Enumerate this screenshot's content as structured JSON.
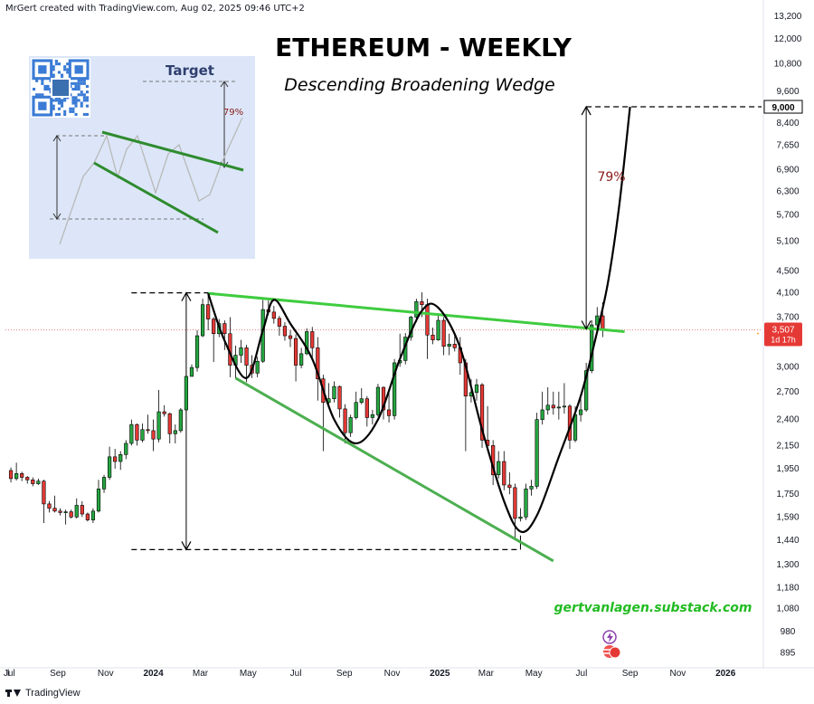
{
  "header": {
    "credit": "MrGert created with TradingView.com, Aug 02, 2025 09:46 UTC+2"
  },
  "footer": {
    "brand": "TradingView"
  },
  "colors": {
    "up": "#26a641",
    "down": "#e53935",
    "trendline_upper": "#3fcc3f",
    "trendline_lower": "#4caf50",
    "curve": "#000000",
    "projection_label": "#8b1a1a",
    "watermark": "#22bb22",
    "price_badge": "#e53935"
  },
  "chart_data": {
    "type": "candlestick",
    "title": "ETHEREUM - WEEKLY",
    "subtitle": "Descending Broadening Wedge",
    "y_scale": "log",
    "ylim": [
      860,
      13500
    ],
    "y_ticks": [
      13200,
      12000,
      10800,
      9600,
      8400,
      7650,
      6900,
      6300,
      5700,
      5100,
      4500,
      4100,
      3700,
      3000,
      2700,
      2400,
      2150,
      1950,
      1750,
      1590,
      1440,
      1300,
      1180,
      1080,
      980,
      895
    ],
    "y_tick_labels": [
      "13,200",
      "12,000",
      "10,800",
      "9,600",
      "8,400",
      "7,650",
      "6,900",
      "6,300",
      "5,700",
      "5,100",
      "4,500",
      "4,100",
      "3,700",
      "3,000",
      "2,700",
      "2,400",
      "2,150",
      "1,950",
      "1,750",
      "1,590",
      "1,440",
      "1,300",
      "1,180",
      "1,080",
      "980",
      "895"
    ],
    "xlim": [
      "2023-06-26",
      "2026-02-16"
    ],
    "x_ticks": [
      {
        "date": "2023-07-01",
        "label": "Jul"
      },
      {
        "date": "2023-09-01",
        "label": "Sep"
      },
      {
        "date": "2023-11-01",
        "label": "Nov"
      },
      {
        "date": "2024-01-01",
        "label": "2024"
      },
      {
        "date": "2024-03-01",
        "label": "Mar"
      },
      {
        "date": "2024-05-01",
        "label": "May"
      },
      {
        "date": "2024-07-01",
        "label": "Jul"
      },
      {
        "date": "2024-09-01",
        "label": "Sep"
      },
      {
        "date": "2024-11-01",
        "label": "Nov"
      },
      {
        "date": "2025-01-01",
        "label": "2025"
      },
      {
        "date": "2025-03-01",
        "label": "Mar"
      },
      {
        "date": "2025-05-01",
        "label": "May"
      },
      {
        "date": "2025-07-01",
        "label": "Jul"
      },
      {
        "date": "2025-09-01",
        "label": "Sep"
      },
      {
        "date": "2025-11-01",
        "label": "Nov"
      },
      {
        "date": "2026-01-01",
        "label": "2026"
      }
    ],
    "candles": [
      {
        "d": "2023-07-03",
        "o": 1935,
        "h": 1960,
        "l": 1840,
        "c": 1870
      },
      {
        "d": "2023-07-10",
        "o": 1870,
        "h": 2000,
        "l": 1855,
        "c": 1910
      },
      {
        "d": "2023-07-17",
        "o": 1910,
        "h": 1925,
        "l": 1850,
        "c": 1880
      },
      {
        "d": "2023-07-24",
        "o": 1880,
        "h": 1890,
        "l": 1830,
        "c": 1860
      },
      {
        "d": "2023-07-31",
        "o": 1860,
        "h": 1880,
        "l": 1810,
        "c": 1830
      },
      {
        "d": "2023-08-07",
        "o": 1830,
        "h": 1870,
        "l": 1820,
        "c": 1850
      },
      {
        "d": "2023-08-14",
        "o": 1850,
        "h": 1860,
        "l": 1550,
        "c": 1680
      },
      {
        "d": "2023-08-21",
        "o": 1680,
        "h": 1700,
        "l": 1620,
        "c": 1650
      },
      {
        "d": "2023-08-28",
        "o": 1650,
        "h": 1740,
        "l": 1620,
        "c": 1630
      },
      {
        "d": "2023-09-04",
        "o": 1630,
        "h": 1650,
        "l": 1600,
        "c": 1620
      },
      {
        "d": "2023-09-11",
        "o": 1620,
        "h": 1640,
        "l": 1540,
        "c": 1625
      },
      {
        "d": "2023-09-18",
        "o": 1625,
        "h": 1640,
        "l": 1580,
        "c": 1590
      },
      {
        "d": "2023-09-25",
        "o": 1590,
        "h": 1720,
        "l": 1580,
        "c": 1670
      },
      {
        "d": "2023-10-02",
        "o": 1670,
        "h": 1700,
        "l": 1590,
        "c": 1610
      },
      {
        "d": "2023-10-09",
        "o": 1610,
        "h": 1620,
        "l": 1560,
        "c": 1570
      },
      {
        "d": "2023-10-16",
        "o": 1570,
        "h": 1650,
        "l": 1550,
        "c": 1630
      },
      {
        "d": "2023-10-23",
        "o": 1630,
        "h": 1860,
        "l": 1620,
        "c": 1790
      },
      {
        "d": "2023-10-30",
        "o": 1790,
        "h": 1900,
        "l": 1760,
        "c": 1880
      },
      {
        "d": "2023-11-06",
        "o": 1880,
        "h": 2140,
        "l": 1860,
        "c": 2050
      },
      {
        "d": "2023-11-13",
        "o": 2050,
        "h": 2120,
        "l": 1950,
        "c": 2010
      },
      {
        "d": "2023-11-20",
        "o": 2010,
        "h": 2100,
        "l": 1940,
        "c": 2070
      },
      {
        "d": "2023-11-27",
        "o": 2070,
        "h": 2200,
        "l": 2030,
        "c": 2170
      },
      {
        "d": "2023-12-04",
        "o": 2170,
        "h": 2400,
        "l": 2150,
        "c": 2350
      },
      {
        "d": "2023-12-11",
        "o": 2350,
        "h": 2360,
        "l": 2150,
        "c": 2200
      },
      {
        "d": "2023-12-18",
        "o": 2200,
        "h": 2360,
        "l": 2180,
        "c": 2300
      },
      {
        "d": "2023-12-25",
        "o": 2300,
        "h": 2450,
        "l": 2260,
        "c": 2290
      },
      {
        "d": "2024-01-01",
        "o": 2290,
        "h": 2400,
        "l": 2100,
        "c": 2210
      },
      {
        "d": "2024-01-08",
        "o": 2210,
        "h": 2720,
        "l": 2180,
        "c": 2480
      },
      {
        "d": "2024-01-15",
        "o": 2480,
        "h": 2550,
        "l": 2430,
        "c": 2460
      },
      {
        "d": "2024-01-22",
        "o": 2460,
        "h": 2470,
        "l": 2170,
        "c": 2260
      },
      {
        "d": "2024-01-29",
        "o": 2260,
        "h": 2350,
        "l": 2170,
        "c": 2290
      },
      {
        "d": "2024-02-05",
        "o": 2290,
        "h": 2520,
        "l": 2270,
        "c": 2500
      },
      {
        "d": "2024-02-12",
        "o": 2500,
        "h": 2950,
        "l": 2480,
        "c": 2880
      },
      {
        "d": "2024-02-19",
        "o": 2880,
        "h": 3030,
        "l": 2890,
        "c": 2990
      },
      {
        "d": "2024-02-26",
        "o": 2990,
        "h": 3500,
        "l": 2940,
        "c": 3420
      },
      {
        "d": "2024-03-04",
        "o": 3420,
        "h": 4000,
        "l": 3400,
        "c": 3900
      },
      {
        "d": "2024-03-11",
        "o": 3900,
        "h": 4090,
        "l": 3500,
        "c": 3670
      },
      {
        "d": "2024-03-18",
        "o": 3670,
        "h": 3700,
        "l": 3060,
        "c": 3450
      },
      {
        "d": "2024-03-25",
        "o": 3450,
        "h": 3670,
        "l": 3400,
        "c": 3600
      },
      {
        "d": "2024-04-01",
        "o": 3600,
        "h": 3650,
        "l": 3220,
        "c": 3450
      },
      {
        "d": "2024-04-08",
        "o": 3450,
        "h": 3700,
        "l": 2870,
        "c": 3020
      },
      {
        "d": "2024-04-15",
        "o": 3020,
        "h": 3280,
        "l": 2860,
        "c": 3150
      },
      {
        "d": "2024-04-22",
        "o": 3150,
        "h": 3360,
        "l": 3050,
        "c": 3250
      },
      {
        "d": "2024-04-29",
        "o": 3250,
        "h": 3290,
        "l": 2810,
        "c": 3020
      },
      {
        "d": "2024-05-06",
        "o": 3020,
        "h": 3150,
        "l": 2860,
        "c": 2920
      },
      {
        "d": "2024-05-13",
        "o": 2920,
        "h": 3130,
        "l": 2870,
        "c": 3070
      },
      {
        "d": "2024-05-20",
        "o": 3070,
        "h": 3980,
        "l": 3050,
        "c": 3820
      },
      {
        "d": "2024-05-27",
        "o": 3820,
        "h": 3970,
        "l": 3730,
        "c": 3780
      },
      {
        "d": "2024-06-03",
        "o": 3780,
        "h": 3880,
        "l": 3600,
        "c": 3680
      },
      {
        "d": "2024-06-10",
        "o": 3680,
        "h": 3720,
        "l": 3420,
        "c": 3560
      },
      {
        "d": "2024-06-17",
        "o": 3560,
        "h": 3620,
        "l": 3350,
        "c": 3420
      },
      {
        "d": "2024-06-24",
        "o": 3420,
        "h": 3500,
        "l": 3260,
        "c": 3380
      },
      {
        "d": "2024-07-01",
        "o": 3380,
        "h": 3440,
        "l": 2820,
        "c": 3020
      },
      {
        "d": "2024-07-08",
        "o": 3020,
        "h": 3250,
        "l": 2980,
        "c": 3170
      },
      {
        "d": "2024-07-15",
        "o": 3170,
        "h": 3530,
        "l": 3150,
        "c": 3480
      },
      {
        "d": "2024-07-22",
        "o": 3480,
        "h": 3550,
        "l": 3100,
        "c": 3250
      },
      {
        "d": "2024-07-29",
        "o": 3250,
        "h": 3400,
        "l": 2600,
        "c": 2850
      },
      {
        "d": "2024-08-05",
        "o": 2850,
        "h": 2900,
        "l": 2100,
        "c": 2580
      },
      {
        "d": "2024-08-12",
        "o": 2580,
        "h": 2800,
        "l": 2550,
        "c": 2620
      },
      {
        "d": "2024-08-19",
        "o": 2620,
        "h": 2820,
        "l": 2580,
        "c": 2760
      },
      {
        "d": "2024-08-26",
        "o": 2760,
        "h": 2770,
        "l": 2420,
        "c": 2510
      },
      {
        "d": "2024-09-02",
        "o": 2510,
        "h": 2560,
        "l": 2170,
        "c": 2270
      },
      {
        "d": "2024-09-09",
        "o": 2270,
        "h": 2450,
        "l": 2230,
        "c": 2420
      },
      {
        "d": "2024-09-16",
        "o": 2420,
        "h": 2700,
        "l": 2400,
        "c": 2580
      },
      {
        "d": "2024-09-23",
        "o": 2580,
        "h": 2740,
        "l": 2560,
        "c": 2620
      },
      {
        "d": "2024-09-30",
        "o": 2620,
        "h": 2650,
        "l": 2330,
        "c": 2420
      },
      {
        "d": "2024-10-07",
        "o": 2420,
        "h": 2500,
        "l": 2350,
        "c": 2450
      },
      {
        "d": "2024-10-14",
        "o": 2450,
        "h": 2790,
        "l": 2430,
        "c": 2750
      },
      {
        "d": "2024-10-21",
        "o": 2750,
        "h": 2760,
        "l": 2400,
        "c": 2500
      },
      {
        "d": "2024-10-28",
        "o": 2500,
        "h": 2700,
        "l": 2370,
        "c": 2440
      },
      {
        "d": "2024-11-04",
        "o": 2440,
        "h": 3100,
        "l": 2400,
        "c": 3050
      },
      {
        "d": "2024-11-11",
        "o": 3050,
        "h": 3450,
        "l": 3000,
        "c": 3080
      },
      {
        "d": "2024-11-18",
        "o": 3080,
        "h": 3460,
        "l": 3030,
        "c": 3400
      },
      {
        "d": "2024-11-25",
        "o": 3400,
        "h": 3720,
        "l": 3350,
        "c": 3700
      },
      {
        "d": "2024-12-02",
        "o": 3700,
        "h": 4000,
        "l": 3620,
        "c": 3950
      },
      {
        "d": "2024-12-09",
        "o": 3950,
        "h": 4110,
        "l": 3700,
        "c": 3900
      },
      {
        "d": "2024-12-16",
        "o": 3900,
        "h": 4000,
        "l": 3100,
        "c": 3430
      },
      {
        "d": "2024-12-23",
        "o": 3430,
        "h": 3540,
        "l": 3300,
        "c": 3360
      },
      {
        "d": "2024-12-30",
        "o": 3360,
        "h": 3740,
        "l": 3350,
        "c": 3650
      },
      {
        "d": "2025-01-06",
        "o": 3650,
        "h": 3700,
        "l": 3150,
        "c": 3270
      },
      {
        "d": "2025-01-13",
        "o": 3270,
        "h": 3450,
        "l": 3150,
        "c": 3300
      },
      {
        "d": "2025-01-20",
        "o": 3300,
        "h": 3450,
        "l": 3200,
        "c": 3250
      },
      {
        "d": "2025-01-27",
        "o": 3250,
        "h": 3400,
        "l": 2900,
        "c": 3050
      },
      {
        "d": "2025-02-03",
        "o": 3050,
        "h": 3100,
        "l": 2100,
        "c": 2650
      },
      {
        "d": "2025-02-10",
        "o": 2650,
        "h": 2850,
        "l": 2580,
        "c": 2690
      },
      {
        "d": "2025-02-17",
        "o": 2690,
        "h": 2850,
        "l": 2600,
        "c": 2780
      },
      {
        "d": "2025-02-24",
        "o": 2780,
        "h": 2800,
        "l": 2130,
        "c": 2200
      },
      {
        "d": "2025-03-03",
        "o": 2200,
        "h": 2540,
        "l": 2100,
        "c": 2150
      },
      {
        "d": "2025-03-10",
        "o": 2150,
        "h": 2200,
        "l": 1820,
        "c": 1900
      },
      {
        "d": "2025-03-17",
        "o": 1900,
        "h": 2100,
        "l": 1870,
        "c": 2010
      },
      {
        "d": "2025-03-24",
        "o": 2010,
        "h": 2100,
        "l": 1780,
        "c": 1820
      },
      {
        "d": "2025-03-31",
        "o": 1820,
        "h": 1920,
        "l": 1750,
        "c": 1800
      },
      {
        "d": "2025-04-07",
        "o": 1800,
        "h": 1830,
        "l": 1450,
        "c": 1580
      },
      {
        "d": "2025-04-14",
        "o": 1580,
        "h": 1650,
        "l": 1560,
        "c": 1590
      },
      {
        "d": "2025-04-21",
        "o": 1590,
        "h": 1830,
        "l": 1570,
        "c": 1790
      },
      {
        "d": "2025-04-28",
        "o": 1790,
        "h": 1860,
        "l": 1740,
        "c": 1810
      },
      {
        "d": "2025-05-05",
        "o": 1810,
        "h": 2470,
        "l": 1790,
        "c": 2400
      },
      {
        "d": "2025-05-12",
        "o": 2400,
        "h": 2700,
        "l": 2350,
        "c": 2500
      },
      {
        "d": "2025-05-19",
        "o": 2500,
        "h": 2750,
        "l": 2450,
        "c": 2550
      },
      {
        "d": "2025-05-26",
        "o": 2550,
        "h": 2700,
        "l": 2450,
        "c": 2520
      },
      {
        "d": "2025-06-02",
        "o": 2520,
        "h": 2700,
        "l": 2400,
        "c": 2530
      },
      {
        "d": "2025-06-09",
        "o": 2530,
        "h": 2800,
        "l": 2460,
        "c": 2540
      },
      {
        "d": "2025-06-16",
        "o": 2540,
        "h": 2560,
        "l": 2120,
        "c": 2200
      },
      {
        "d": "2025-06-23",
        "o": 2200,
        "h": 2540,
        "l": 2180,
        "c": 2450
      },
      {
        "d": "2025-06-30",
        "o": 2450,
        "h": 2620,
        "l": 2380,
        "c": 2500
      },
      {
        "d": "2025-07-07",
        "o": 2500,
        "h": 3050,
        "l": 2480,
        "c": 2950
      },
      {
        "d": "2025-07-14",
        "o": 2950,
        "h": 3650,
        "l": 2920,
        "c": 3580
      },
      {
        "d": "2025-07-21",
        "o": 3580,
        "h": 3860,
        "l": 3520,
        "c": 3720
      },
      {
        "d": "2025-07-28",
        "o": 3720,
        "h": 3940,
        "l": 3400,
        "c": 3507
      }
    ],
    "upper_trendline": [
      {
        "d": "2024-03-11",
        "p": 4090
      },
      {
        "d": "2025-08-25",
        "p": 3480
      }
    ],
    "lower_trendline": [
      {
        "d": "2024-04-15",
        "p": 2860
      },
      {
        "d": "2025-05-26",
        "p": 1320
      }
    ],
    "wave_curve": [
      {
        "d": "2024-03-11",
        "p": 4090
      },
      {
        "d": "2024-04-01",
        "p": 3350
      },
      {
        "d": "2024-04-29",
        "p": 2860
      },
      {
        "d": "2024-05-20",
        "p": 3500
      },
      {
        "d": "2024-06-03",
        "p": 3980
      },
      {
        "d": "2024-06-24",
        "p": 3600
      },
      {
        "d": "2024-07-22",
        "p": 3100
      },
      {
        "d": "2024-08-19",
        "p": 2400
      },
      {
        "d": "2024-09-16",
        "p": 2170
      },
      {
        "d": "2024-10-14",
        "p": 2400
      },
      {
        "d": "2024-11-11",
        "p": 3100
      },
      {
        "d": "2024-12-09",
        "p": 3800
      },
      {
        "d": "2024-12-30",
        "p": 3850
      },
      {
        "d": "2025-01-27",
        "p": 3250
      },
      {
        "d": "2025-02-24",
        "p": 2300
      },
      {
        "d": "2025-03-24",
        "p": 1700
      },
      {
        "d": "2025-04-14",
        "p": 1495
      },
      {
        "d": "2025-05-05",
        "p": 1600
      },
      {
        "d": "2025-06-02",
        "p": 2050
      },
      {
        "d": "2025-06-30",
        "p": 2650
      },
      {
        "d": "2025-07-21",
        "p": 3480
      },
      {
        "d": "2025-08-04",
        "p": 4300
      },
      {
        "d": "2025-08-18",
        "p": 5900
      },
      {
        "d": "2025-09-01",
        "p": 9000
      }
    ],
    "pattern_height": {
      "top": 4100,
      "bottom": 1385,
      "x": "2024-02-12",
      "top_line": [
        "2023-12-04",
        "2024-03-18"
      ],
      "bottom_line": [
        "2023-12-04",
        "2025-04-14"
      ]
    },
    "projection": {
      "label": "79%",
      "from": 3520,
      "to": 9000,
      "x": "2025-07-07",
      "target_line": [
        "2025-07-07",
        "2026-02-16"
      ]
    },
    "current_price": {
      "value": 3507,
      "label": "3,507",
      "countdown": "1d 17h"
    },
    "target_price": {
      "value": 9000,
      "label": "9,000"
    },
    "annotations": {
      "watermark": "gertvanlagen.substack.com"
    },
    "inset": {
      "title": "Target",
      "percent": "79%"
    }
  }
}
